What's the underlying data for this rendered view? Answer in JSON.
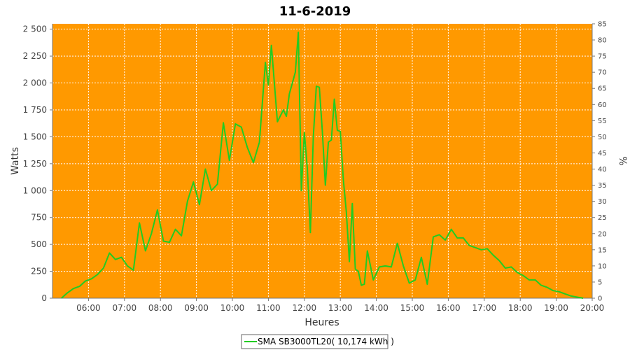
{
  "chart_data": {
    "type": "line",
    "title": "11-6-2019",
    "xlabel": "Heures",
    "ylabel": "Watts",
    "y2label": "%",
    "xlim": [
      "05:00",
      "20:00"
    ],
    "ylim": [
      0,
      2550
    ],
    "y2lim": [
      0,
      85
    ],
    "grid": true,
    "plot_background": "#FF9900",
    "legend_position": "bottom-center",
    "x_ticks": [
      "06:00",
      "07:00",
      "08:00",
      "09:00",
      "10:00",
      "11:00",
      "12:00",
      "13:00",
      "14:00",
      "15:00",
      "16:00",
      "17:00",
      "18:00",
      "19:00",
      "20:00"
    ],
    "y_ticks": [
      "0",
      "250",
      "500",
      "750",
      "1 000",
      "1 250",
      "1 500",
      "1 750",
      "2 000",
      "2 250",
      "2 500"
    ],
    "y2_ticks": [
      "0",
      "5",
      "10",
      "15",
      "20",
      "25",
      "30",
      "35",
      "40",
      "45",
      "50",
      "55",
      "60",
      "65",
      "70",
      "75",
      "80",
      "85"
    ],
    "series": [
      {
        "name": "SMA SB3000TL20( 10,174 kWh )",
        "color": "#22CC22",
        "x": [
          "05:15",
          "05:25",
          "05:35",
          "05:45",
          "05:55",
          "06:05",
          "06:15",
          "06:25",
          "06:35",
          "06:45",
          "06:55",
          "07:05",
          "07:15",
          "07:25",
          "07:35",
          "07:45",
          "07:55",
          "08:05",
          "08:15",
          "08:25",
          "08:35",
          "08:45",
          "08:55",
          "09:05",
          "09:15",
          "09:25",
          "09:35",
          "09:45",
          "09:55",
          "10:05",
          "10:15",
          "10:25",
          "10:35",
          "10:45",
          "10:55",
          "11:00",
          "11:05",
          "11:15",
          "11:25",
          "11:30",
          "11:35",
          "11:40",
          "11:45",
          "11:50",
          "11:55",
          "12:00",
          "12:05",
          "12:10",
          "12:15",
          "12:20",
          "12:25",
          "12:30",
          "12:35",
          "12:40",
          "12:45",
          "12:50",
          "12:55",
          "13:00",
          "13:05",
          "13:10",
          "13:15",
          "13:20",
          "13:25",
          "13:30",
          "13:35",
          "13:40",
          "13:45",
          "13:55",
          "14:05",
          "14:15",
          "14:25",
          "14:35",
          "14:45",
          "14:55",
          "15:05",
          "15:15",
          "15:25",
          "15:35",
          "15:45",
          "15:55",
          "16:05",
          "16:15",
          "16:25",
          "16:35",
          "16:45",
          "16:55",
          "17:05",
          "17:15",
          "17:25",
          "17:35",
          "17:45",
          "17:55",
          "18:05",
          "18:15",
          "18:25",
          "18:35",
          "18:45",
          "18:55",
          "19:05",
          "19:15",
          "19:25",
          "19:35",
          "19:45"
        ],
        "values": [
          0,
          50,
          90,
          110,
          160,
          180,
          220,
          280,
          420,
          360,
          380,
          300,
          260,
          700,
          440,
          600,
          820,
          530,
          520,
          640,
          580,
          900,
          1080,
          870,
          1200,
          1000,
          1060,
          1630,
          1280,
          1620,
          1590,
          1400,
          1260,
          1450,
          2190,
          1980,
          2350,
          1640,
          1750,
          1690,
          1900,
          2000,
          2100,
          2470,
          1000,
          1540,
          1200,
          610,
          1500,
          1970,
          1960,
          1550,
          1050,
          1450,
          1470,
          1850,
          1560,
          1550,
          1100,
          800,
          340,
          880,
          270,
          250,
          120,
          130,
          440,
          170,
          290,
          300,
          290,
          510,
          300,
          140,
          170,
          380,
          130,
          570,
          590,
          540,
          640,
          560,
          560,
          490,
          470,
          450,
          460,
          400,
          350,
          280,
          290,
          240,
          210,
          170,
          170,
          120,
          100,
          70,
          60,
          40,
          20,
          10,
          0
        ]
      }
    ]
  }
}
